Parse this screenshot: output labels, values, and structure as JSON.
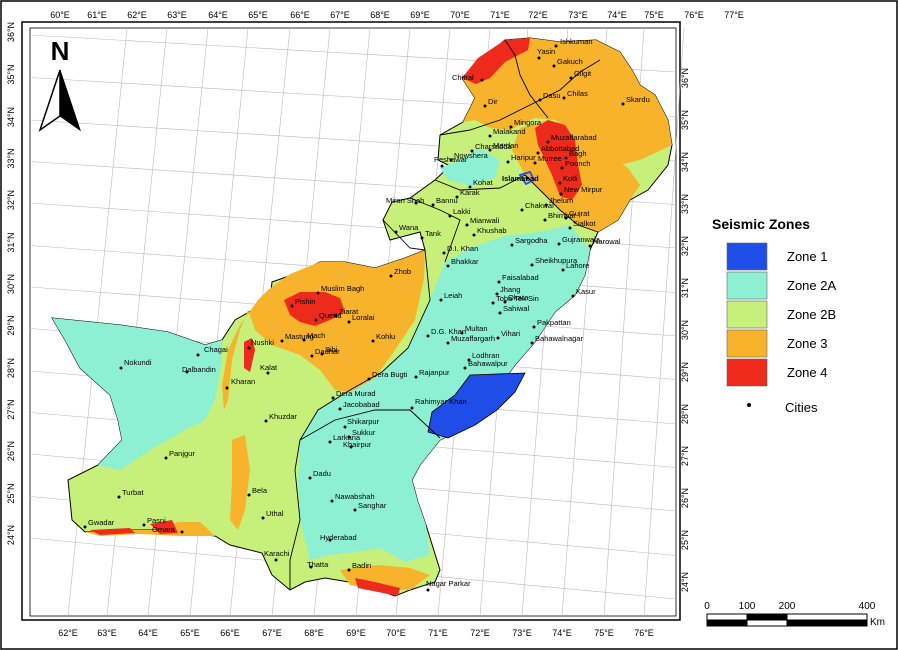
{
  "map": {
    "north_label": "N",
    "top_ticks": [
      "60°E",
      "61°E",
      "62°E",
      "63°E",
      "64°E",
      "65°E",
      "66°E",
      "67°E",
      "68°E",
      "69°E",
      "70°E",
      "71°E",
      "72°E",
      "73°E",
      "74°E",
      "75°E",
      "76°E",
      "77°E"
    ],
    "bottom_ticks": [
      "62°E",
      "63°E",
      "64°E",
      "65°E",
      "66°E",
      "67°E",
      "68°E",
      "69°E",
      "70°E",
      "71°E",
      "72°E",
      "73°E",
      "74°E",
      "75°E",
      "76°E"
    ],
    "left_ticks": [
      "36°N",
      "35°N",
      "34°N",
      "33°N",
      "32°N",
      "31°N",
      "30°N",
      "29°N",
      "28°N",
      "27°N",
      "26°N",
      "25°N",
      "24°N"
    ],
    "right_ticks": [
      "36°N",
      "35°N",
      "34°N",
      "33°N",
      "32°N",
      "31°N",
      "30°N",
      "29°N",
      "28°N",
      "27°N",
      "26°N",
      "25°N",
      "24°N"
    ],
    "cities": [
      "Ishkuman",
      "Yasin",
      "Gakuch",
      "Gilgit",
      "Chitral",
      "Dasu",
      "Chilas",
      "Skardu",
      "Dir",
      "Mingora",
      "Malakand",
      "Muzaffarabad",
      "Charsadda",
      "Mardan",
      "Abbottabad",
      "Haripur",
      "Murree",
      "Poonch",
      "Peshawar",
      "Nowshera",
      "Bagh",
      "Kotli",
      "Islamabad",
      "Kohat",
      "Karak",
      "New Mirpur",
      "Jhelum",
      "Gujrat",
      "Sialkot",
      "Miran Shah",
      "Bannu",
      "Lakki",
      "Mianwali",
      "Chakwal",
      "Bhimbar",
      "Narowal",
      "Gujranwala",
      "Khushab",
      "Sargodha",
      "Wana",
      "Tank",
      "D.I. Khan",
      "Bhakkar",
      "Sheikhupura",
      "Lahore",
      "Faisalabad",
      "Jhang",
      "Toba Tek Sin",
      "Kasur",
      "Okara",
      "Sahiwal",
      "Zhob",
      "Muslim Bagh",
      "Pishin",
      "Quetta",
      "Ziarat",
      "Loralai",
      "Mastung",
      "Mach",
      "Sibi",
      "Dadhar",
      "Kohlu",
      "Nushki",
      "Chagai",
      "Nokundi",
      "Dalbandin",
      "Kalat",
      "Kharan",
      "Dera Bugti",
      "Dera Murad",
      "Jacobabad",
      "Leiah",
      "D.G. Khan",
      "Multan",
      "Muzaffargarh",
      "Vihari",
      "Pakpattan",
      "Bahawalnagar",
      "Bahawalpur",
      "Lodhran",
      "Rajanpur",
      "Rahimyar Khan",
      "Khuzdar",
      "Shikarpur",
      "Sukkur",
      "Larkana",
      "Khairpur",
      "Panjgur",
      "Dadu",
      "Bela",
      "Turbat",
      "Uthal",
      "Nawabshah",
      "Sanghar",
      "Gwadar",
      "Pasni",
      "Omara",
      "Hyderabad",
      "Karachi",
      "Thatta",
      "Badin",
      "Nagar Parkar"
    ]
  },
  "legend": {
    "title": "Seismic Zones",
    "zones": [
      {
        "label": "Zone 1",
        "color": "#1f4de8"
      },
      {
        "label": "Zone 2A",
        "color": "#8ef0d2"
      },
      {
        "label": "Zone 2B",
        "color": "#c6f07a"
      },
      {
        "label": "Zone 3",
        "color": "#f7b32b"
      },
      {
        "label": "Zone 4",
        "color": "#ee2a1c"
      }
    ],
    "cities_label": "Cities"
  },
  "scale": {
    "ticks": [
      "0",
      "100",
      "200",
      "400"
    ],
    "unit": "Km"
  }
}
